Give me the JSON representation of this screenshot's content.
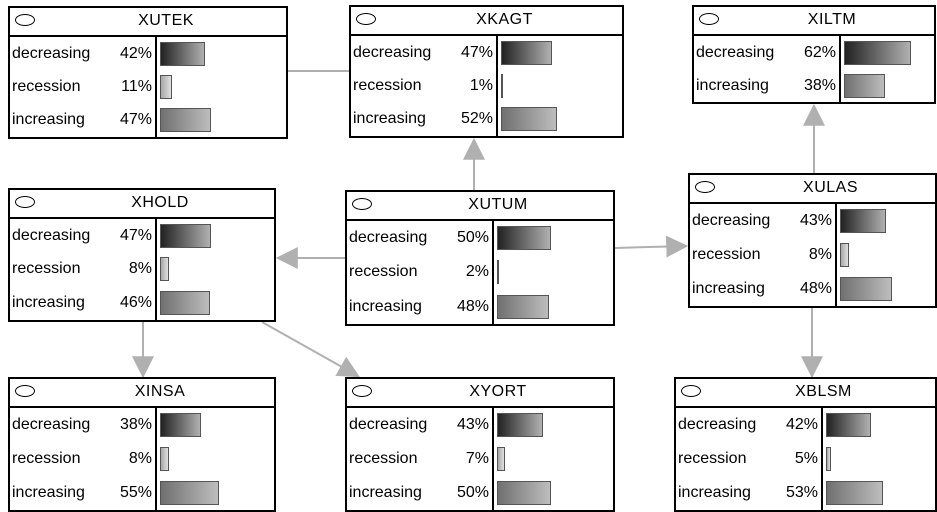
{
  "states": [
    "decreasing",
    "recession",
    "increasing"
  ],
  "bar_colors": {
    "decreasing": [
      "#222222",
      "#b0b0b0"
    ],
    "recession": [
      "#a8a8a8",
      "#e0e0e0"
    ],
    "increasing": [
      "#707070",
      "#bdbdbd"
    ]
  },
  "edge_color": "#b0b0b0",
  "nodes": [
    {
      "id": "XUTEK",
      "title": "XUTEK",
      "values": [
        {
          "label": "decreasing",
          "pct": "42%",
          "p": 0.42
        },
        {
          "label": "recession",
          "pct": "11%",
          "p": 0.11
        },
        {
          "label": "increasing",
          "pct": "47%",
          "p": 0.47
        }
      ]
    },
    {
      "id": "XKAGT",
      "title": "XKAGT",
      "values": [
        {
          "label": "decreasing",
          "pct": "47%",
          "p": 0.47
        },
        {
          "label": "recession",
          "pct": "1%",
          "p": 0.01
        },
        {
          "label": "increasing",
          "pct": "52%",
          "p": 0.52
        }
      ]
    },
    {
      "id": "XILTM",
      "title": "XILTM",
      "values": [
        {
          "label": "decreasing",
          "pct": "62%",
          "p": 0.62
        },
        {
          "label": "increasing",
          "pct": "38%",
          "p": 0.38
        }
      ]
    },
    {
      "id": "XHOLD",
      "title": "XHOLD",
      "values": [
        {
          "label": "decreasing",
          "pct": "47%",
          "p": 0.47
        },
        {
          "label": "recession",
          "pct": "8%",
          "p": 0.08
        },
        {
          "label": "increasing",
          "pct": "46%",
          "p": 0.46
        }
      ]
    },
    {
      "id": "XUTUM",
      "title": "XUTUM",
      "values": [
        {
          "label": "decreasing",
          "pct": "50%",
          "p": 0.5
        },
        {
          "label": "recession",
          "pct": "2%",
          "p": 0.02
        },
        {
          "label": "increasing",
          "pct": "48%",
          "p": 0.48
        }
      ]
    },
    {
      "id": "XULAS",
      "title": "XULAS",
      "values": [
        {
          "label": "decreasing",
          "pct": "43%",
          "p": 0.43
        },
        {
          "label": "recession",
          "pct": "8%",
          "p": 0.08
        },
        {
          "label": "increasing",
          "pct": "48%",
          "p": 0.48
        }
      ]
    },
    {
      "id": "XINSA",
      "title": "XINSA",
      "values": [
        {
          "label": "decreasing",
          "pct": "38%",
          "p": 0.38
        },
        {
          "label": "recession",
          "pct": "8%",
          "p": 0.08
        },
        {
          "label": "increasing",
          "pct": "55%",
          "p": 0.55
        }
      ]
    },
    {
      "id": "XYORT",
      "title": "XYORT",
      "values": [
        {
          "label": "decreasing",
          "pct": "43%",
          "p": 0.43
        },
        {
          "label": "recession",
          "pct": "7%",
          "p": 0.07
        },
        {
          "label": "increasing",
          "pct": "50%",
          "p": 0.5
        }
      ]
    },
    {
      "id": "XBLSM",
      "title": "XBLSM",
      "values": [
        {
          "label": "decreasing",
          "pct": "42%",
          "p": 0.42
        },
        {
          "label": "recession",
          "pct": "5%",
          "p": 0.05
        },
        {
          "label": "increasing",
          "pct": "53%",
          "p": 0.53
        }
      ]
    }
  ],
  "edges": [
    {
      "from": "XKAGT",
      "to": "XUTEK"
    },
    {
      "from": "XUTUM",
      "to": "XKAGT"
    },
    {
      "from": "XUTUM",
      "to": "XHOLD"
    },
    {
      "from": "XUTUM",
      "to": "XULAS"
    },
    {
      "from": "XULAS",
      "to": "XILTM"
    },
    {
      "from": "XULAS",
      "to": "XBLSM"
    },
    {
      "from": "XHOLD",
      "to": "XINSA"
    },
    {
      "from": "XHOLD",
      "to": "XYORT"
    }
  ]
}
